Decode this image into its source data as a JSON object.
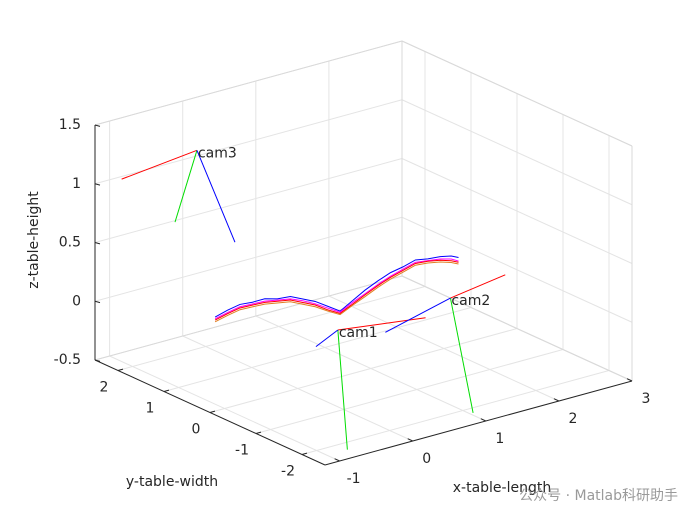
{
  "chart_data": {
    "type": "line3d",
    "xlabel": "x-table-length",
    "ylabel": "y-table-width",
    "zlabel": "z-table-height",
    "xlim": [
      -1.2,
      3
    ],
    "ylim": [
      -2.5,
      2.5
    ],
    "zlim": [
      -0.5,
      1.5
    ],
    "xticks": [
      -1,
      0,
      1,
      2,
      3
    ],
    "yticks": [
      -2,
      -1,
      0,
      1,
      2
    ],
    "zticks": [
      -0.5,
      0,
      0.5,
      1,
      1.5
    ],
    "grid": true,
    "series": [
      {
        "color": "#0000ff",
        "x": [
          -1.13,
          -0.96,
          -0.79,
          -0.62,
          -0.45,
          -0.28,
          -0.1,
          0.07,
          0.24,
          0.41,
          0.58,
          0.75,
          0.92,
          1.1,
          1.27,
          1.44,
          1.61,
          1.78,
          1.95,
          2.1,
          2.2
        ],
        "y": [
          0,
          0,
          0,
          0,
          0,
          0,
          0,
          0,
          0,
          0,
          0,
          0,
          0,
          0,
          0,
          0,
          0,
          0,
          0,
          0,
          0
        ],
        "z": [
          0.3,
          0.33,
          0.35,
          0.34,
          0.34,
          0.31,
          0.3,
          0.25,
          0.2,
          0.13,
          0.06,
          0.12,
          0.18,
          0.23,
          0.27,
          0.29,
          0.32,
          0.3,
          0.29,
          0.27,
          0.24
        ]
      },
      {
        "color": "#ff00ff",
        "x": [
          -1.13,
          -0.96,
          -0.79,
          -0.62,
          -0.45,
          -0.28,
          -0.1,
          0.07,
          0.24,
          0.41,
          0.58,
          0.75,
          0.92,
          1.1,
          1.27,
          1.44,
          1.61,
          1.78,
          1.95,
          2.1,
          2.2
        ],
        "y": [
          0,
          0,
          0,
          0,
          0,
          0,
          0,
          0,
          0,
          0,
          0,
          0,
          0,
          0,
          0,
          0,
          0,
          0,
          0,
          0,
          0
        ],
        "z": [
          0.285,
          0.31,
          0.33,
          0.325,
          0.32,
          0.3,
          0.28,
          0.235,
          0.18,
          0.115,
          0.05,
          0.105,
          0.15,
          0.2,
          0.24,
          0.27,
          0.3,
          0.285,
          0.27,
          0.245,
          0.21
        ]
      },
      {
        "color": "#ff0000",
        "x": [
          -1.13,
          -0.96,
          -0.79,
          -0.62,
          -0.45,
          -0.28,
          -0.1,
          0.07,
          0.24,
          0.41,
          0.58,
          0.75,
          0.92,
          1.1,
          1.27,
          1.44,
          1.61,
          1.78,
          1.95,
          2.1,
          2.2
        ],
        "y": [
          0,
          0,
          0,
          0,
          0,
          0,
          0,
          0,
          0,
          0,
          0,
          0,
          0,
          0,
          0,
          0,
          0,
          0,
          0,
          0,
          0
        ],
        "z": [
          0.275,
          0.3,
          0.32,
          0.315,
          0.31,
          0.29,
          0.27,
          0.22,
          0.17,
          0.1,
          0.04,
          0.09,
          0.14,
          0.19,
          0.23,
          0.26,
          0.29,
          0.28,
          0.26,
          0.23,
          0.2
        ]
      },
      {
        "color": "#e08020",
        "x": [
          -1.13,
          -0.96,
          -0.79,
          -0.62,
          -0.45,
          -0.28,
          -0.1,
          0.07,
          0.24,
          0.41,
          0.58,
          0.75,
          0.92,
          1.1,
          1.27,
          1.44,
          1.61,
          1.78,
          1.95,
          2.1,
          2.2
        ],
        "y": [
          0,
          0,
          0,
          0,
          0,
          0,
          0,
          0,
          0,
          0,
          0,
          0,
          0,
          0,
          0,
          0,
          0,
          0,
          0,
          0,
          0
        ],
        "z": [
          0.26,
          0.285,
          0.305,
          0.3,
          0.295,
          0.275,
          0.255,
          0.205,
          0.155,
          0.09,
          0.03,
          0.08,
          0.125,
          0.175,
          0.215,
          0.245,
          0.275,
          0.265,
          0.245,
          0.215,
          0.185
        ]
      }
    ],
    "cameras": [
      {
        "label": "cam1",
        "position": [
          -0.08,
          -1,
          0.19
        ],
        "axes": [
          {
            "color": "#ff0000",
            "end": [
              1.12,
              -1,
              0.09
            ]
          },
          {
            "color": "#00dd00",
            "end": [
              0.05,
              -1,
              -0.85
            ]
          },
          {
            "color": "#0000ff",
            "end": [
              -0.38,
              -1,
              0.1
            ]
          }
        ]
      },
      {
        "label": "cam2",
        "position": [
          1.46,
          -1,
          0.2
        ],
        "axes": [
          {
            "color": "#ff0000",
            "end": [
              2.21,
              -1,
              0.27
            ]
          },
          {
            "color": "#00dd00",
            "end": [
              1.77,
              -1,
              -0.83
            ]
          },
          {
            "color": "#0000ff",
            "end": [
              0.57,
              -1,
              0.06
            ]
          }
        ]
      },
      {
        "label": "cam3",
        "position": [
          -0.12,
          2,
          1.19
        ],
        "axes": [
          {
            "color": "#ff0000",
            "end": [
              -1.15,
              2,
              1.12
            ]
          },
          {
            "color": "#00dd00",
            "end": [
              -0.42,
              2,
              0.63
            ]
          },
          {
            "color": "#0000ff",
            "end": [
              0.4,
              2,
              0.32
            ]
          }
        ]
      }
    ],
    "watermark": "公众号 · Matlab科研助手"
  }
}
